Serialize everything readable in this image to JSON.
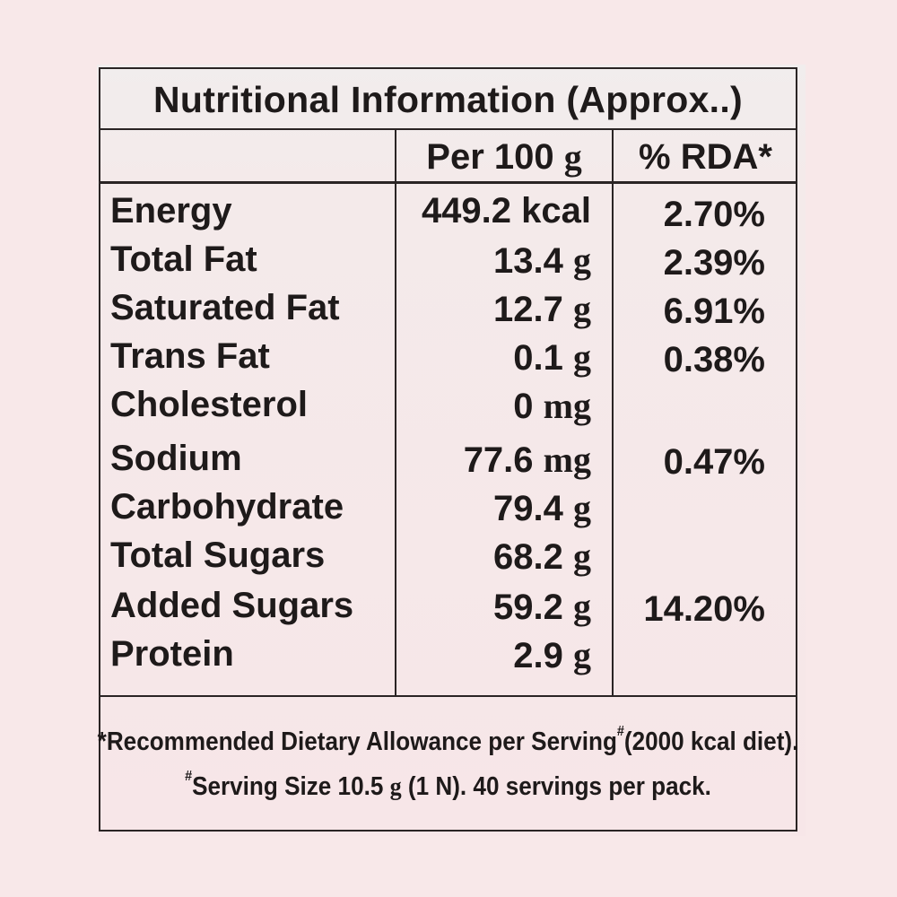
{
  "title": "Nutritional Information (Approx..)",
  "columns": {
    "per_100g_label": "Per 100",
    "per_100g_unit": "g",
    "rda_label": "% RDA*"
  },
  "nutrients": [
    {
      "name": "Energy",
      "amount": "449.2 kcal",
      "unit": "",
      "rda": "2.70%"
    },
    {
      "name": "Total Fat",
      "amount": "13.4",
      "unit": "g",
      "rda": "2.39%"
    },
    {
      "name": "Saturated Fat",
      "amount": "12.7",
      "unit": "g",
      "rda": "6.91%"
    },
    {
      "name": "Trans Fat",
      "amount": "0.1",
      "unit": "g",
      "rda": "0.38%"
    },
    {
      "name": "Cholesterol",
      "amount": "0",
      "unit": "mg",
      "rda": ""
    },
    {
      "name": "Sodium",
      "amount": "77.6",
      "unit": "mg",
      "rda": "0.47%"
    },
    {
      "name": "Carbohydrate",
      "amount": "79.4",
      "unit": "g",
      "rda": ""
    },
    {
      "name": "Total Sugars",
      "amount": "68.2",
      "unit": "g",
      "rda": ""
    },
    {
      "name": "Added Sugars",
      "amount": "59.2",
      "unit": "g",
      "rda": "14.20%"
    },
    {
      "name": "Protein",
      "amount": "2.9",
      "unit": "g",
      "rda": ""
    }
  ],
  "footer": {
    "line1_a": "*Recommended Dietary Allowance per Serving",
    "line1_mark": "#",
    "line1_b": "(2000 kcal diet).",
    "line2_mark": "#",
    "line2_a": "Serving Size 10.5",
    "line2_unit": "g",
    "line2_b": "(1 N). 40 servings per pack."
  }
}
